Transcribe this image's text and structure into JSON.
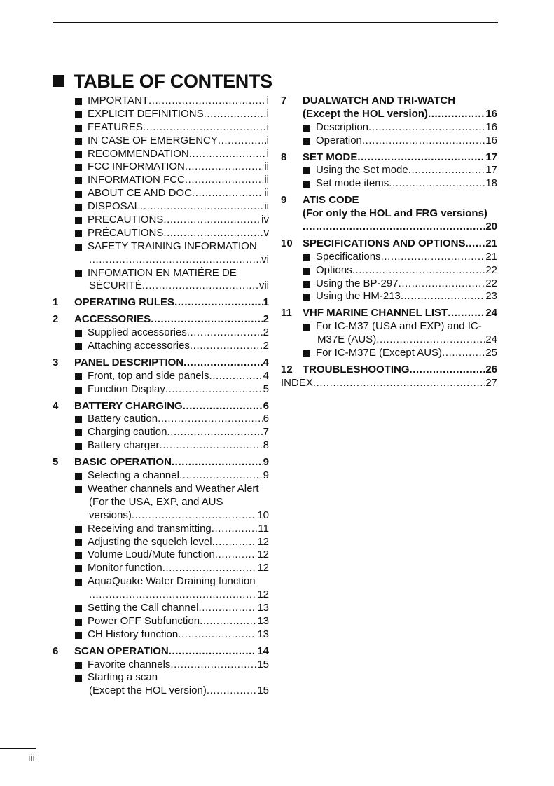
{
  "title": "TABLE OF CONTENTS",
  "page_number": "iii",
  "left": [
    {
      "type": "item",
      "lines": [
        "IMPORTANT"
      ],
      "page": "i"
    },
    {
      "type": "item",
      "lines": [
        "EXPLICIT DEFINITIONS"
      ],
      "page": "i"
    },
    {
      "type": "item",
      "lines": [
        "FEATURES"
      ],
      "page": "i"
    },
    {
      "type": "item",
      "lines": [
        "IN CASE OF EMERGENCY"
      ],
      "page": "i"
    },
    {
      "type": "item",
      "lines": [
        "RECOMMENDATION"
      ],
      "page": "i"
    },
    {
      "type": "item",
      "lines": [
        "FCC INFORMATION"
      ],
      "page": "ii"
    },
    {
      "type": "item",
      "lines": [
        "INFORMATION FCC"
      ],
      "page": "ii"
    },
    {
      "type": "item",
      "lines": [
        "ABOUT CE AND DOC"
      ],
      "page": "ii"
    },
    {
      "type": "item",
      "lines": [
        "DISPOSAL"
      ],
      "page": "ii"
    },
    {
      "type": "item",
      "lines": [
        "PRECAUTIONS"
      ],
      "page": "iv"
    },
    {
      "type": "item",
      "lines": [
        "PRÉCAUTIONS"
      ],
      "page": "v"
    },
    {
      "type": "item",
      "lines": [
        "SAFETY TRAINING INFORMATION",
        ""
      ],
      "page": "vi"
    },
    {
      "type": "item",
      "lines": [
        "INFOMATION EN MATIÉRE DE",
        "SÉCURITÉ"
      ],
      "page": "vii"
    },
    {
      "type": "section",
      "num": "1",
      "lines": [
        "OPERATING RULES"
      ],
      "page": "1"
    },
    {
      "type": "section",
      "num": "2",
      "lines": [
        "ACCESSORIES"
      ],
      "page": "2"
    },
    {
      "type": "item",
      "lines": [
        "Supplied accessories"
      ],
      "page": "2"
    },
    {
      "type": "item",
      "lines": [
        "Attaching accessories"
      ],
      "page": "2"
    },
    {
      "type": "section",
      "num": "3",
      "lines": [
        "PANEL DESCRIPTION"
      ],
      "page": "4"
    },
    {
      "type": "item",
      "lines": [
        "Front, top and side panels"
      ],
      "page": "4"
    },
    {
      "type": "item",
      "lines": [
        "Function Display"
      ],
      "page": "5"
    },
    {
      "type": "section",
      "num": "4",
      "lines": [
        "BATTERY CHARGING"
      ],
      "page": "6"
    },
    {
      "type": "item",
      "lines": [
        "Battery caution"
      ],
      "page": "6"
    },
    {
      "type": "item",
      "lines": [
        "Charging caution"
      ],
      "page": "7"
    },
    {
      "type": "item",
      "lines": [
        "Battery charger"
      ],
      "page": "8"
    },
    {
      "type": "section",
      "num": "5",
      "lines": [
        "BASIC OPERATION"
      ],
      "page": "9"
    },
    {
      "type": "item",
      "lines": [
        "Selecting a channel"
      ],
      "page": "9"
    },
    {
      "type": "item",
      "lines": [
        "Weather channels and Weather Alert",
        "(For the USA, EXP, and AUS",
        "versions)"
      ],
      "page": "10"
    },
    {
      "type": "item",
      "lines": [
        "Receiving and transmitting"
      ],
      "page": "11"
    },
    {
      "type": "item",
      "lines": [
        "Adjusting the squelch level"
      ],
      "page": "12"
    },
    {
      "type": "item",
      "lines": [
        "Volume Loud/Mute function"
      ],
      "page": "12"
    },
    {
      "type": "item",
      "lines": [
        "Monitor function"
      ],
      "page": "12"
    },
    {
      "type": "item",
      "lines": [
        "AquaQuake Water Draining function",
        ""
      ],
      "page": "12"
    },
    {
      "type": "item",
      "lines": [
        "Setting the Call channel"
      ],
      "page": "13"
    },
    {
      "type": "item",
      "lines": [
        "Power OFF Subfunction"
      ],
      "page": "13"
    },
    {
      "type": "item",
      "lines": [
        "CH History function"
      ],
      "page": "13"
    },
    {
      "type": "section",
      "num": "6",
      "lines": [
        "SCAN OPERATION"
      ],
      "page": "14"
    },
    {
      "type": "item",
      "lines": [
        "Favorite channels"
      ],
      "page": "15"
    },
    {
      "type": "item",
      "lines": [
        "Starting a scan",
        "(Except the HOL version)"
      ],
      "page": "15"
    }
  ],
  "right": [
    {
      "type": "section",
      "num": "7",
      "lines": [
        "DUALWATCH AND TRI-WATCH",
        "(Except the HOL version)"
      ],
      "page": "16"
    },
    {
      "type": "item",
      "lines": [
        "Description"
      ],
      "page": "16"
    },
    {
      "type": "item",
      "lines": [
        "Operation"
      ],
      "page": "16"
    },
    {
      "type": "section",
      "num": "8",
      "lines": [
        "SET MODE"
      ],
      "page": "17"
    },
    {
      "type": "item",
      "lines": [
        "Using the Set mode"
      ],
      "page": "17"
    },
    {
      "type": "item",
      "lines": [
        "Set mode items"
      ],
      "page": "18"
    },
    {
      "type": "section",
      "num": "9",
      "lines": [
        "ATIS CODE",
        "(For only the HOL and FRG versions)",
        ""
      ],
      "page": "20"
    },
    {
      "type": "section",
      "num": "10",
      "lines": [
        "SPECIFICATIONS AND OPTIONS"
      ],
      "page": "21"
    },
    {
      "type": "item",
      "lines": [
        "Specifications"
      ],
      "page": "21"
    },
    {
      "type": "item",
      "lines": [
        "Options"
      ],
      "page": "22"
    },
    {
      "type": "item",
      "lines": [
        "Using the BP-297"
      ],
      "page": "22"
    },
    {
      "type": "item",
      "lines": [
        "Using the HM-213"
      ],
      "page": "23"
    },
    {
      "type": "section",
      "num": "11",
      "lines": [
        "VHF MARINE CHANNEL LIST"
      ],
      "page": "24"
    },
    {
      "type": "item",
      "lines": [
        "For IC-M37 (USA and EXP) and IC-",
        "M37E (AUS)"
      ],
      "page": "24"
    },
    {
      "type": "item",
      "lines": [
        "For IC-M37E (Except AUS)"
      ],
      "page": "25"
    },
    {
      "type": "section",
      "num": "12",
      "lines": [
        "TROUBLESHOOTING"
      ],
      "page": "26"
    },
    {
      "type": "index",
      "lines": [
        "INDEX"
      ],
      "page": "27"
    }
  ]
}
